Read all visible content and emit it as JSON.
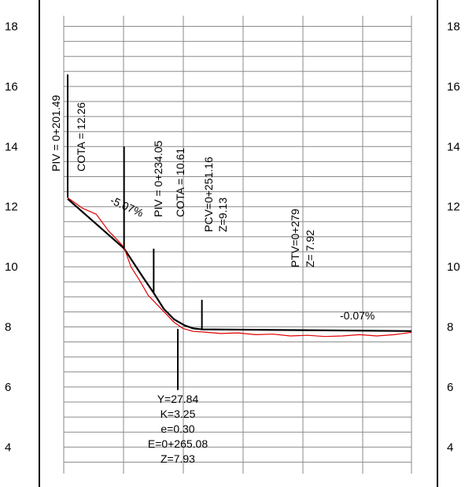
{
  "chart_data": {
    "type": "line",
    "y_ticks": [
      "4",
      "6",
      "8",
      "10",
      "12",
      "14",
      "16",
      "18"
    ],
    "y_range": [
      3.2,
      18.6
    ],
    "grid": true,
    "series": [
      {
        "name": "",
        "role": "design-grade-line",
        "color": "#000000",
        "points": [
          [
            201.49,
            12.26
          ],
          [
            234.05,
            10.61
          ],
          [
            245,
            9.65
          ],
          [
            251.16,
            9.13
          ],
          [
            257,
            8.6
          ],
          [
            263,
            8.25
          ],
          [
            269,
            8.05
          ],
          [
            274,
            7.95
          ],
          [
            279,
            7.92
          ],
          [
            400,
            7.86
          ]
        ]
      },
      {
        "name": "",
        "role": "existing-ground",
        "color": "#e00000",
        "points": [
          [
            201.49,
            12.3
          ],
          [
            210,
            11.95
          ],
          [
            218,
            11.75
          ],
          [
            225,
            11.2
          ],
          [
            230,
            10.9
          ],
          [
            234,
            10.65
          ],
          [
            238,
            10.0
          ],
          [
            243,
            9.55
          ],
          [
            248,
            9.05
          ],
          [
            253,
            8.75
          ],
          [
            258,
            8.45
          ],
          [
            263,
            8.15
          ],
          [
            268,
            7.95
          ],
          [
            274,
            7.85
          ],
          [
            280,
            7.83
          ],
          [
            290,
            7.78
          ],
          [
            300,
            7.8
          ],
          [
            310,
            7.74
          ],
          [
            320,
            7.76
          ],
          [
            330,
            7.7
          ],
          [
            340,
            7.72
          ],
          [
            350,
            7.68
          ],
          [
            360,
            7.7
          ],
          [
            370,
            7.74
          ],
          [
            380,
            7.7
          ],
          [
            390,
            7.74
          ],
          [
            400,
            7.82
          ]
        ]
      }
    ],
    "annotations": [
      {
        "key": "piv1",
        "lines": [
          "PIV = 0+201.49",
          "COTA =  12.26"
        ]
      },
      {
        "key": "piv2",
        "lines": [
          "PIV = 0+234.05",
          "COTA =  10.61"
        ]
      },
      {
        "key": "pcv",
        "lines": [
          "PCV=0+251.16",
          "Z=9.13"
        ]
      },
      {
        "key": "ptv",
        "lines": [
          "PTV=0+279",
          "Z= 7.92"
        ]
      },
      {
        "key": "curve",
        "lines": [
          "Y=27.84",
          "K=3.25",
          "e=0.30",
          "E=0+265.08",
          "Z=7.93"
        ]
      }
    ],
    "slopes": [
      "-5.07%",
      "-0.07%"
    ]
  }
}
